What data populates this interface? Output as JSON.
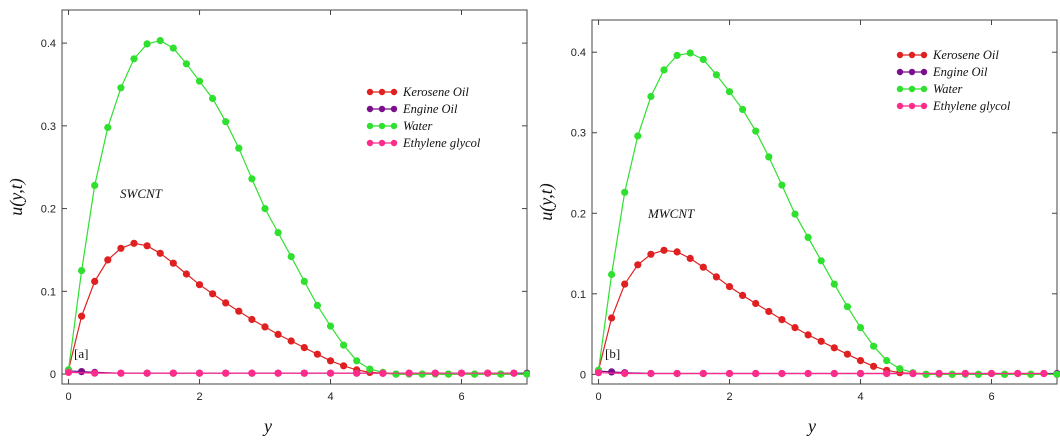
{
  "colors": {
    "kerosene": "#e02020",
    "engine": "#7a0f8c",
    "water": "#2fe02f",
    "ethylene": "#ff2b8a"
  },
  "chart_data": [
    {
      "type": "line",
      "panel_label": "[a]",
      "annotation": "SWCNT",
      "xlabel": "y",
      "ylabel": "u(y,t)",
      "xlim": [
        -0.1,
        7.0
      ],
      "ylim": [
        -0.012,
        0.44
      ],
      "xticks": [
        "0",
        "2",
        "4",
        "6"
      ],
      "yticks": [
        "0",
        "0.1",
        "0.2",
        "0.3",
        "0.4"
      ],
      "legend_position": "top-right",
      "series": [
        {
          "name": "Kerosene Oil",
          "color_key": "kerosene",
          "x": [
            0,
            0.2,
            0.4,
            0.6,
            0.8,
            1.0,
            1.2,
            1.4,
            1.6,
            1.8,
            2.0,
            2.2,
            2.4,
            2.6,
            2.8,
            3.0,
            3.2,
            3.4,
            3.6,
            3.8,
            4.0,
            4.2,
            4.4,
            4.6,
            4.8,
            5.0,
            5.4,
            5.8,
            6.2,
            6.6,
            7.0
          ],
          "y": [
            0.005,
            0.07,
            0.112,
            0.138,
            0.152,
            0.158,
            0.155,
            0.146,
            0.134,
            0.121,
            0.108,
            0.097,
            0.086,
            0.076,
            0.066,
            0.057,
            0.048,
            0.04,
            0.032,
            0.024,
            0.016,
            0.01,
            0.005,
            0.002,
            0.001,
            0,
            0,
            0,
            0,
            0,
            0
          ]
        },
        {
          "name": "Engine Oil",
          "color_key": "engine",
          "x": [
            0,
            0.2,
            0.4,
            0.8,
            1.2,
            1.6,
            2.0,
            2.4,
            2.8,
            3.2,
            3.6,
            4.0,
            4.4,
            4.8,
            5.2,
            5.6,
            6.0,
            6.4,
            6.8,
            7.0
          ],
          "y": [
            0.004,
            0.003,
            0.002,
            0.001,
            0.001,
            0.001,
            0.001,
            0.001,
            0.001,
            0.001,
            0.001,
            0.001,
            0.001,
            0.001,
            0.001,
            0.001,
            0.001,
            0.001,
            0.001,
            0.001
          ]
        },
        {
          "name": "Water",
          "color_key": "water",
          "x": [
            0,
            0.2,
            0.4,
            0.6,
            0.8,
            1.0,
            1.2,
            1.4,
            1.6,
            1.8,
            2.0,
            2.2,
            2.4,
            2.6,
            2.8,
            3.0,
            3.2,
            3.4,
            3.6,
            3.8,
            4.0,
            4.2,
            4.4,
            4.6,
            4.8,
            5.0,
            5.2,
            5.4,
            5.6,
            5.8,
            6.2,
            6.6,
            7.0
          ],
          "y": [
            0.005,
            0.125,
            0.228,
            0.298,
            0.346,
            0.381,
            0.399,
            0.403,
            0.394,
            0.375,
            0.354,
            0.333,
            0.305,
            0.273,
            0.236,
            0.2,
            0.171,
            0.142,
            0.112,
            0.083,
            0.058,
            0.035,
            0.016,
            0.006,
            0.002,
            0,
            0,
            0,
            0,
            0,
            0,
            0,
            0
          ]
        },
        {
          "name": "Ethylene glycol",
          "color_key": "ethylene",
          "x": [
            0,
            0.4,
            0.8,
            1.2,
            1.6,
            2.0,
            2.4,
            2.8,
            3.2,
            3.6,
            4.0,
            4.4,
            4.8,
            5.2,
            5.6,
            6.0,
            6.4,
            6.8
          ],
          "y": [
            0.002,
            0.001,
            0.001,
            0.001,
            0.001,
            0.001,
            0.001,
            0.001,
            0.001,
            0.001,
            0.001,
            0.001,
            0.001,
            0.001,
            0.001,
            0.001,
            0.001,
            0.001
          ]
        }
      ]
    },
    {
      "type": "line",
      "panel_label": "[b]",
      "annotation": "MWCNT",
      "xlabel": "y",
      "ylabel": "u(y,t)",
      "xlim": [
        -0.1,
        7.0
      ],
      "ylim": [
        -0.012,
        0.44
      ],
      "xticks": [
        "0",
        "2",
        "4",
        "6"
      ],
      "yticks": [
        "0",
        "0.1",
        "0.2",
        "0.3",
        "0.4"
      ],
      "legend_position": "top-right",
      "series": [
        {
          "name": "Kerosene Oil",
          "color_key": "kerosene",
          "x": [
            0,
            0.2,
            0.4,
            0.6,
            0.8,
            1.0,
            1.2,
            1.4,
            1.6,
            1.8,
            2.0,
            2.2,
            2.4,
            2.6,
            2.8,
            3.0,
            3.2,
            3.4,
            3.6,
            3.8,
            4.0,
            4.2,
            4.4,
            4.6,
            4.8,
            5.0,
            5.4,
            5.8,
            6.2,
            6.6,
            7.0
          ],
          "y": [
            0.005,
            0.07,
            0.112,
            0.136,
            0.149,
            0.154,
            0.152,
            0.144,
            0.133,
            0.121,
            0.109,
            0.098,
            0.088,
            0.078,
            0.068,
            0.058,
            0.049,
            0.041,
            0.033,
            0.025,
            0.017,
            0.01,
            0.005,
            0.002,
            0.001,
            0,
            0,
            0,
            0,
            0,
            0
          ]
        },
        {
          "name": "Engine Oil",
          "color_key": "engine",
          "x": [
            0,
            0.2,
            0.4,
            0.8,
            1.2,
            1.6,
            2.0,
            2.4,
            2.8,
            3.2,
            3.6,
            4.0,
            4.4,
            4.8,
            5.2,
            5.6,
            6.0,
            6.4,
            6.8,
            7.0
          ],
          "y": [
            0.004,
            0.003,
            0.002,
            0.001,
            0.001,
            0.001,
            0.001,
            0.001,
            0.001,
            0.001,
            0.001,
            0.001,
            0.001,
            0.001,
            0.001,
            0.001,
            0.001,
            0.001,
            0.001,
            0.001
          ]
        },
        {
          "name": "Water",
          "color_key": "water",
          "x": [
            0,
            0.2,
            0.4,
            0.6,
            0.8,
            1.0,
            1.2,
            1.4,
            1.6,
            1.8,
            2.0,
            2.2,
            2.4,
            2.6,
            2.8,
            3.0,
            3.2,
            3.4,
            3.6,
            3.8,
            4.0,
            4.2,
            4.4,
            4.6,
            4.8,
            5.0,
            5.2,
            5.4,
            5.6,
            5.8,
            6.2,
            6.6,
            7.0
          ],
          "y": [
            0.005,
            0.124,
            0.226,
            0.296,
            0.345,
            0.378,
            0.396,
            0.399,
            0.391,
            0.372,
            0.351,
            0.329,
            0.302,
            0.27,
            0.235,
            0.199,
            0.17,
            0.141,
            0.112,
            0.084,
            0.058,
            0.035,
            0.017,
            0.007,
            0.002,
            0,
            0,
            0,
            0,
            0,
            0,
            0,
            0
          ]
        },
        {
          "name": "Ethylene glycol",
          "color_key": "ethylene",
          "x": [
            0,
            0.4,
            0.8,
            1.2,
            1.6,
            2.0,
            2.4,
            2.8,
            3.2,
            3.6,
            4.0,
            4.4,
            4.8,
            5.2,
            5.6,
            6.0,
            6.4,
            6.8
          ],
          "y": [
            0.002,
            0.001,
            0.001,
            0.001,
            0.001,
            0.001,
            0.001,
            0.001,
            0.001,
            0.001,
            0.001,
            0.001,
            0.001,
            0.001,
            0.001,
            0.001,
            0.001,
            0.001
          ]
        }
      ]
    }
  ]
}
